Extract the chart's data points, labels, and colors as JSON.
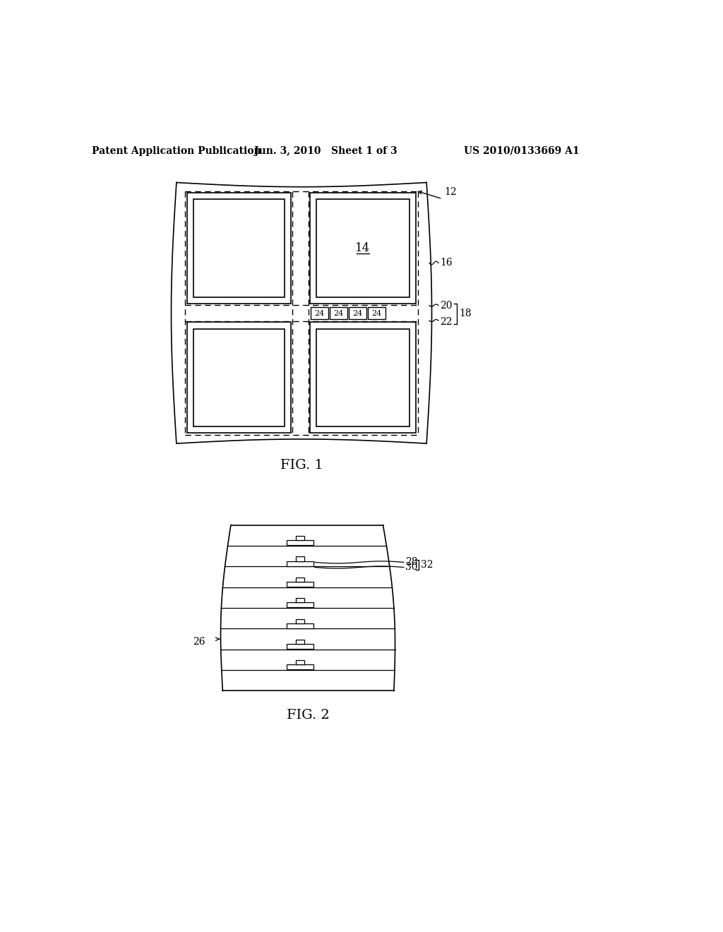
{
  "bg_color": "#ffffff",
  "line_color": "#000000",
  "header_left": "Patent Application Publication",
  "header_mid": "Jun. 3, 2010   Sheet 1 of 3",
  "header_right": "US 2010/0133669 A1",
  "fig1_label": "FIG. 1",
  "fig2_label": "FIG. 2",
  "label_12": "12",
  "label_14": "14",
  "label_16": "16",
  "label_18": "18",
  "label_20": "20",
  "label_22": "22",
  "label_24": "24",
  "label_26": "26",
  "label_28": "28",
  "label_30": "30",
  "label_32": "32"
}
